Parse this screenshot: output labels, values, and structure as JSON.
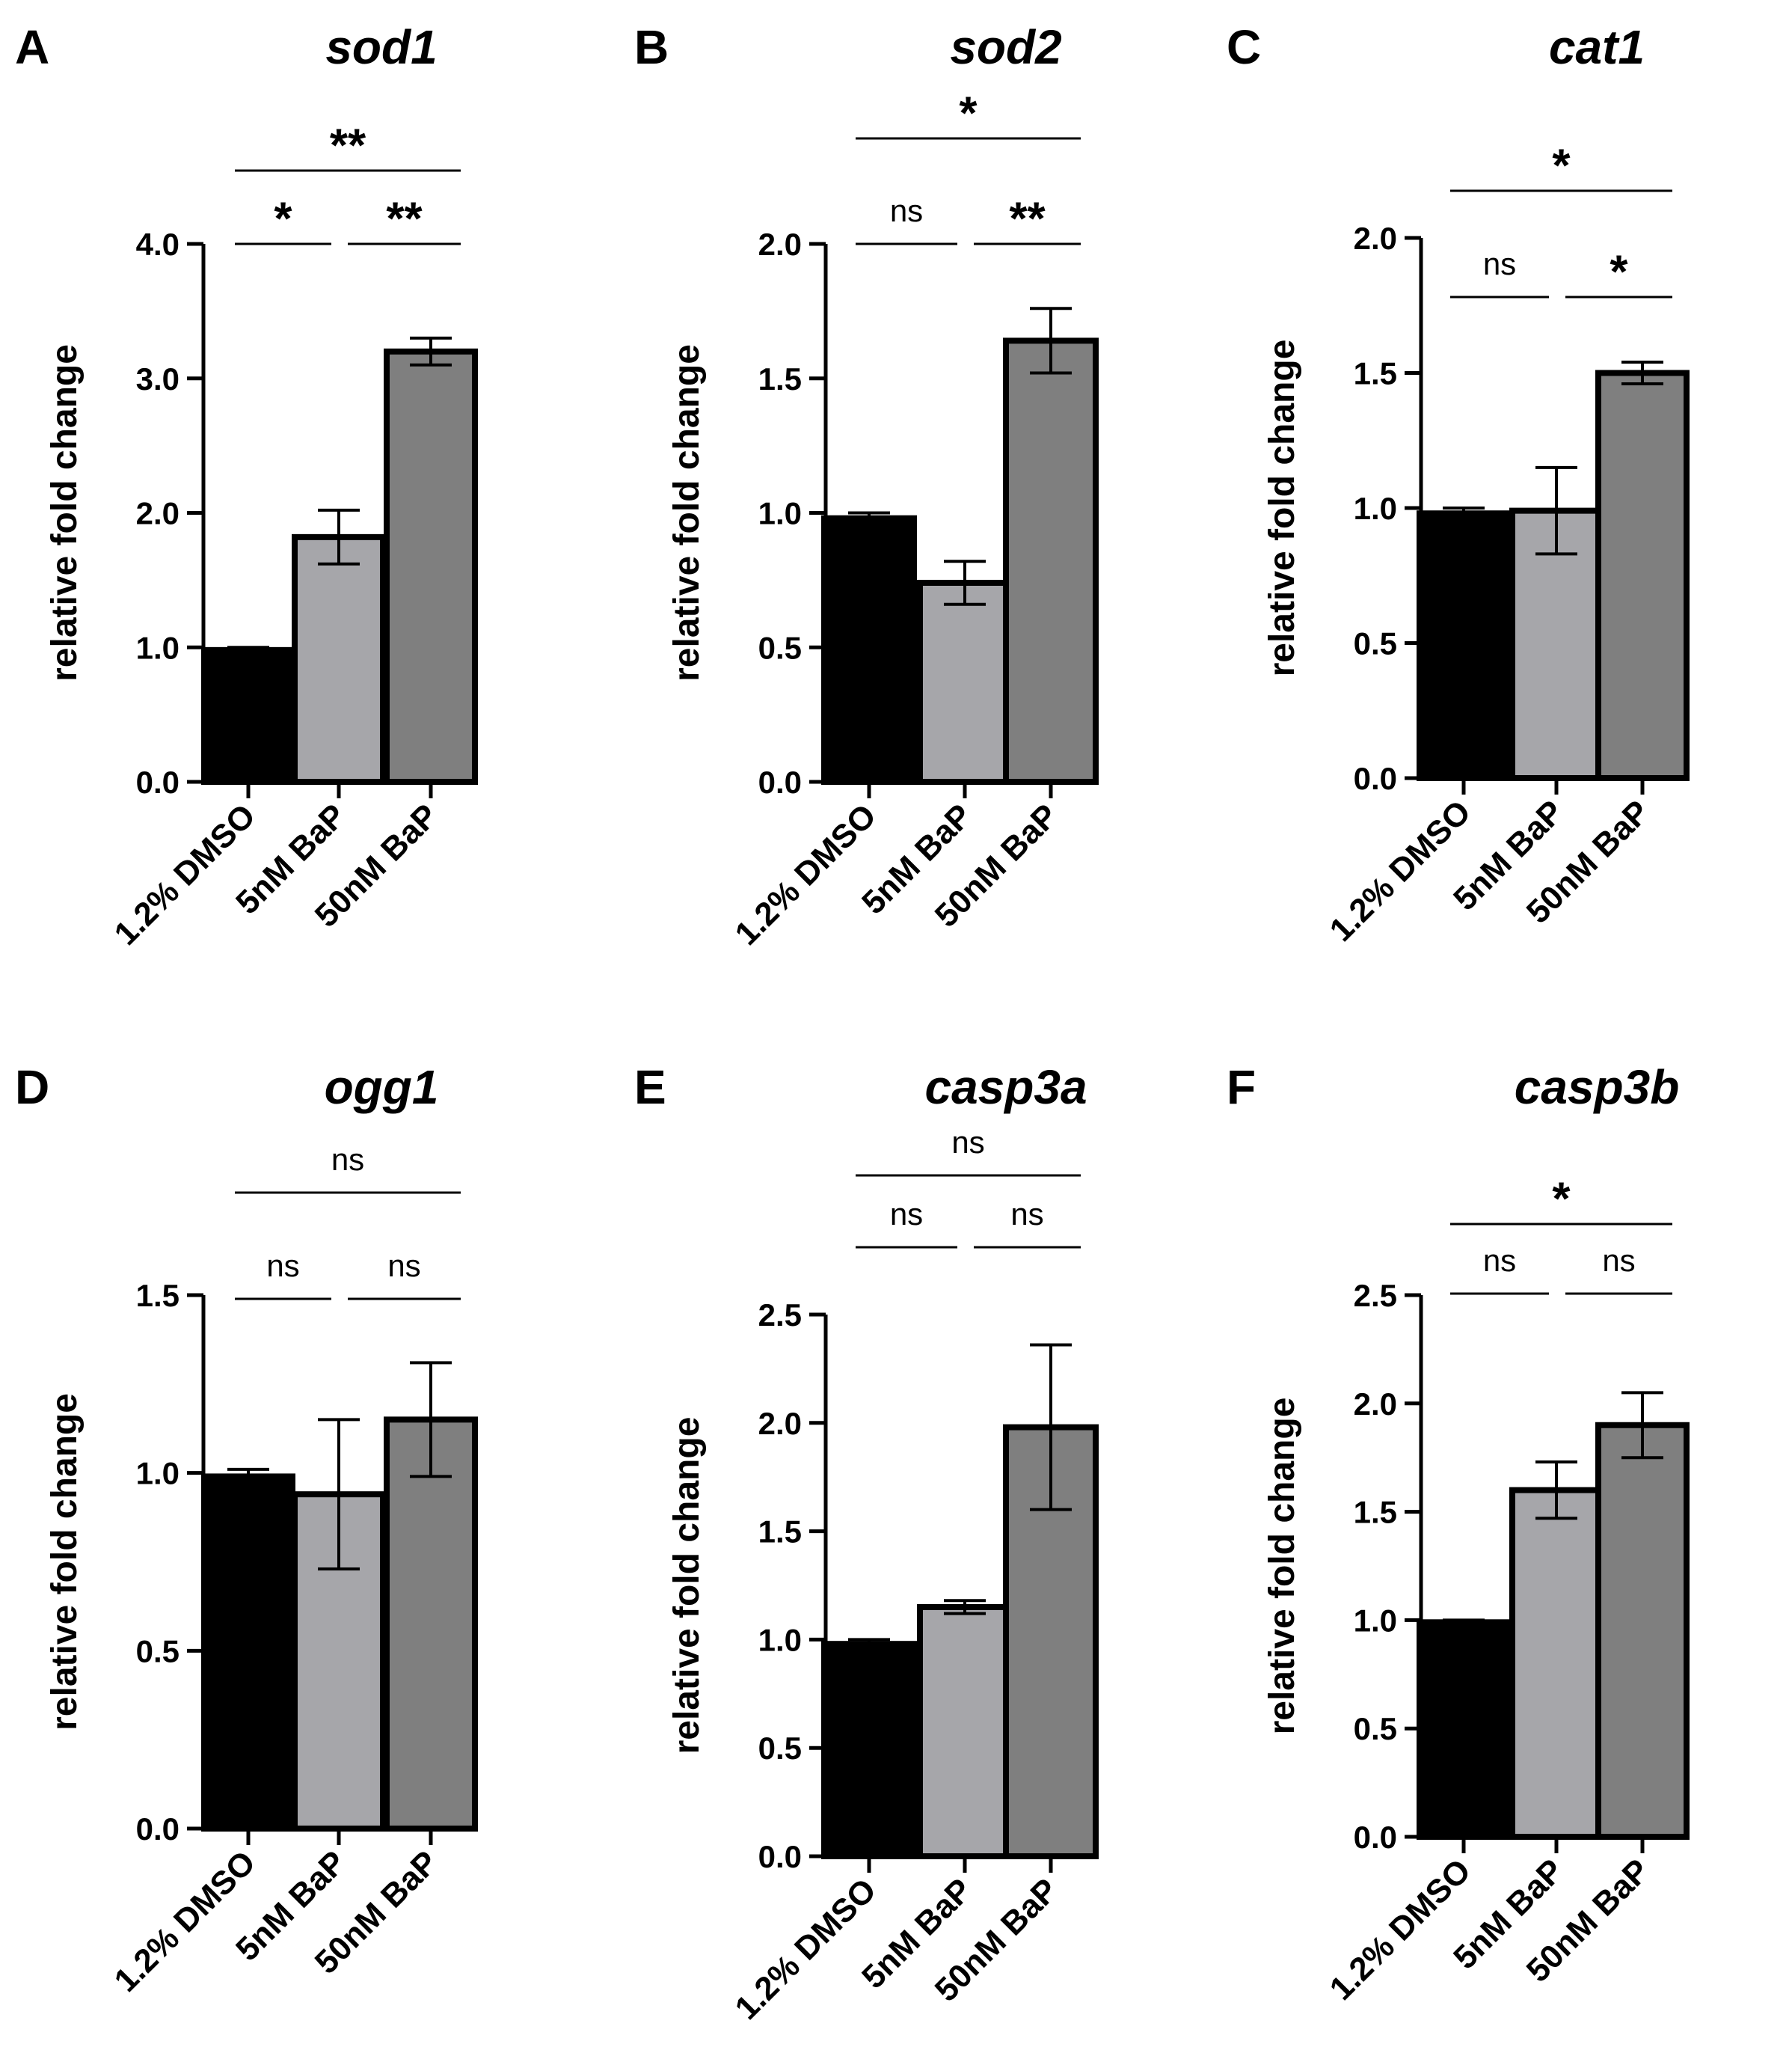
{
  "figure": {
    "background": "#ffffff",
    "bar_colors": [
      "#000000",
      "#a6a6aa",
      "#7f7f7f"
    ],
    "axis_color": "#000000"
  },
  "chart_data": [
    {
      "panel": "A",
      "type": "bar",
      "title": "sod1",
      "ylabel": "relative fold change",
      "xlabel": "",
      "categories": [
        "1.2% DMSO",
        "5nM BaP",
        "50nM BaP"
      ],
      "values": [
        0.98,
        1.82,
        3.2
      ],
      "errors": [
        0.02,
        0.2,
        0.1
      ],
      "ylim": [
        0,
        4
      ],
      "yticks": [
        "0.0",
        "1.0",
        "2.0",
        "3.0",
        "4.0"
      ],
      "significance": [
        {
          "pair": "1.2% DMSO vs 5nM BaP",
          "from": 0,
          "to": 1,
          "label": "*"
        },
        {
          "pair": "5nM BaP vs 50nM BaP",
          "from": 1,
          "to": 2,
          "label": "**"
        },
        {
          "pair": "1.2% DMSO vs 50nM BaP",
          "from": 0,
          "to": 2,
          "label": "**"
        }
      ]
    },
    {
      "panel": "B",
      "type": "bar",
      "title": "sod2",
      "ylabel": "relative fold change",
      "xlabel": "",
      "categories": [
        "1.2% DMSO",
        "5nM BaP",
        "50nM BaP"
      ],
      "values": [
        0.98,
        0.74,
        1.64
      ],
      "errors": [
        0.02,
        0.08,
        0.12
      ],
      "ylim": [
        0,
        2
      ],
      "yticks": [
        "0.0",
        "0.5",
        "1.0",
        "1.5",
        "2.0"
      ],
      "significance": [
        {
          "pair": "1.2% DMSO vs 5nM BaP",
          "from": 0,
          "to": 1,
          "label": "ns"
        },
        {
          "pair": "5nM BaP vs 50nM BaP",
          "from": 1,
          "to": 2,
          "label": "**"
        },
        {
          "pair": "1.2% DMSO vs 50nM BaP",
          "from": 0,
          "to": 2,
          "label": "*"
        }
      ]
    },
    {
      "panel": "C",
      "type": "bar",
      "title": "cat1",
      "ylabel": "relative fold change",
      "xlabel": "",
      "categories": [
        "1.2% DMSO",
        "5nM BaP",
        "50nM BaP"
      ],
      "values": [
        0.98,
        0.99,
        1.5
      ],
      "errors": [
        0.02,
        0.16,
        0.04
      ],
      "ylim": [
        0,
        2
      ],
      "yticks": [
        "0.0",
        "0.5",
        "1.0",
        "1.5",
        "2.0"
      ],
      "significance": [
        {
          "pair": "1.2% DMSO vs 5nM BaP",
          "from": 0,
          "to": 1,
          "label": "ns"
        },
        {
          "pair": "5nM BaP vs 50nM BaP",
          "from": 1,
          "to": 2,
          "label": "*"
        },
        {
          "pair": "1.2% DMSO vs 50nM BaP",
          "from": 0,
          "to": 2,
          "label": "*"
        }
      ]
    },
    {
      "panel": "D",
      "type": "bar",
      "title": "ogg1",
      "ylabel": "relative fold change",
      "xlabel": "",
      "categories": [
        "1.2% DMSO",
        "5nM BaP",
        "50nM BaP"
      ],
      "values": [
        0.99,
        0.94,
        1.15
      ],
      "errors": [
        0.02,
        0.21,
        0.16
      ],
      "ylim": [
        0,
        1.5
      ],
      "yticks": [
        "0.0",
        "0.5",
        "1.0",
        "1.5"
      ],
      "significance": [
        {
          "pair": "1.2% DMSO vs 5nM BaP",
          "from": 0,
          "to": 1,
          "label": "ns"
        },
        {
          "pair": "5nM BaP vs 50nM BaP",
          "from": 1,
          "to": 2,
          "label": "ns"
        },
        {
          "pair": "1.2% DMSO vs 50nM BaP",
          "from": 0,
          "to": 2,
          "label": "ns"
        }
      ]
    },
    {
      "panel": "E",
      "type": "bar",
      "title": "casp3a",
      "ylabel": "relative fold change",
      "xlabel": "",
      "categories": [
        "1.2% DMSO",
        "5nM BaP",
        "50nM BaP"
      ],
      "values": [
        0.98,
        1.15,
        1.98
      ],
      "errors": [
        0.02,
        0.03,
        0.38
      ],
      "ylim": [
        0,
        2.5
      ],
      "yticks": [
        "0.0",
        "0.5",
        "1.0",
        "1.5",
        "2.0",
        "2.5"
      ],
      "significance": [
        {
          "pair": "1.2% DMSO vs 5nM BaP",
          "from": 0,
          "to": 1,
          "label": "ns"
        },
        {
          "pair": "5nM BaP vs 50nM BaP",
          "from": 1,
          "to": 2,
          "label": "ns"
        },
        {
          "pair": "1.2% DMSO vs 50nM BaP",
          "from": 0,
          "to": 2,
          "label": "ns"
        }
      ]
    },
    {
      "panel": "F",
      "type": "bar",
      "title": "casp3b",
      "ylabel": "relative fold change",
      "xlabel": "",
      "categories": [
        "1.2% DMSO",
        "5nM BaP",
        "50nM BaP"
      ],
      "values": [
        0.99,
        1.6,
        1.9
      ],
      "errors": [
        0.01,
        0.13,
        0.15
      ],
      "ylim": [
        0,
        2.5
      ],
      "yticks": [
        "0.0",
        "0.5",
        "1.0",
        "1.5",
        "2.0",
        "2.5"
      ],
      "significance": [
        {
          "pair": "1.2% DMSO vs 5nM BaP",
          "from": 0,
          "to": 1,
          "label": "ns"
        },
        {
          "pair": "5nM BaP vs 50nM BaP",
          "from": 1,
          "to": 2,
          "label": "ns"
        },
        {
          "pair": "1.2% DMSO vs 50nM BaP",
          "from": 0,
          "to": 2,
          "label": "*"
        }
      ]
    }
  ]
}
